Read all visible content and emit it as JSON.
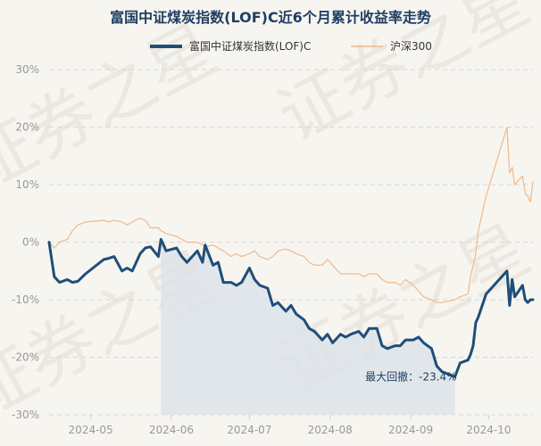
{
  "chart_data": {
    "type": "line",
    "title": "富国中证煤炭指数(LOF)C近6个月累计收益率走势",
    "xlabel": "",
    "ylabel": "",
    "x_tick_labels": [
      "2024-05",
      "2024-06",
      "2024-07",
      "2024-08",
      "2024-09",
      "2024-10"
    ],
    "y_tick_labels": [
      "30%",
      "20%",
      "10%",
      "0%",
      "-10%",
      "-20%",
      "-30%"
    ],
    "ylim": [
      -30,
      30
    ],
    "y_ticks": [
      30,
      20,
      10,
      0,
      -10,
      -20,
      -30
    ],
    "x_range": [
      "2024-04-15",
      "2024-10-18"
    ],
    "x_ticks": [
      "2024-05-01",
      "2024-06-01",
      "2024-07-01",
      "2024-08-01",
      "2024-09-01",
      "2024-10-01"
    ],
    "grid": true,
    "legend_position": "top",
    "watermark": "证券之星",
    "annotation": {
      "text": "最大回撤：-23.4%",
      "from_date": "2024-05-28",
      "to_date": "2024-09-18",
      "value": -23.4
    },
    "series": [
      {
        "name": "富国中证煤炭指数(LOF)C",
        "color": "#1f4e79",
        "points": [
          [
            "2024-04-15",
            0
          ],
          [
            "2024-04-17",
            -6
          ],
          [
            "2024-04-19",
            -7
          ],
          [
            "2024-04-22",
            -6.5
          ],
          [
            "2024-04-24",
            -7
          ],
          [
            "2024-04-26",
            -6.8
          ],
          [
            "2024-04-29",
            -5.5
          ],
          [
            "2024-05-06",
            -3
          ],
          [
            "2024-05-08",
            -2.8
          ],
          [
            "2024-05-10",
            -2.5
          ],
          [
            "2024-05-13",
            -5
          ],
          [
            "2024-05-15",
            -4.5
          ],
          [
            "2024-05-17",
            -5
          ],
          [
            "2024-05-20",
            -2
          ],
          [
            "2024-05-22",
            -1
          ],
          [
            "2024-05-24",
            -0.8
          ],
          [
            "2024-05-27",
            -2.5
          ],
          [
            "2024-05-28",
            0.5
          ],
          [
            "2024-05-30",
            -1.5
          ],
          [
            "2024-06-03",
            -1
          ],
          [
            "2024-06-05",
            -2.5
          ],
          [
            "2024-06-07",
            -3.5
          ],
          [
            "2024-06-11",
            -1.5
          ],
          [
            "2024-06-13",
            -3.5
          ],
          [
            "2024-06-14",
            -0.5
          ],
          [
            "2024-06-17",
            -4
          ],
          [
            "2024-06-19",
            -3.5
          ],
          [
            "2024-06-21",
            -7
          ],
          [
            "2024-06-24",
            -7
          ],
          [
            "2024-06-26",
            -7.5
          ],
          [
            "2024-06-28",
            -7
          ],
          [
            "2024-07-01",
            -4.5
          ],
          [
            "2024-07-03",
            -6.5
          ],
          [
            "2024-07-05",
            -7.5
          ],
          [
            "2024-07-08",
            -8
          ],
          [
            "2024-07-10",
            -11
          ],
          [
            "2024-07-12",
            -10.5
          ],
          [
            "2024-07-15",
            -12
          ],
          [
            "2024-07-17",
            -11
          ],
          [
            "2024-07-19",
            -12.5
          ],
          [
            "2024-07-22",
            -13.5
          ],
          [
            "2024-07-24",
            -15
          ],
          [
            "2024-07-26",
            -15.5
          ],
          [
            "2024-07-29",
            -17
          ],
          [
            "2024-07-31",
            -16
          ],
          [
            "2024-08-02",
            -17.5
          ],
          [
            "2024-08-05",
            -16
          ],
          [
            "2024-08-07",
            -16.5
          ],
          [
            "2024-08-09",
            -16
          ],
          [
            "2024-08-12",
            -15.5
          ],
          [
            "2024-08-14",
            -16.5
          ],
          [
            "2024-08-16",
            -15
          ],
          [
            "2024-08-19",
            -15
          ],
          [
            "2024-08-21",
            -18
          ],
          [
            "2024-08-23",
            -18.5
          ],
          [
            "2024-08-26",
            -18
          ],
          [
            "2024-08-28",
            -18
          ],
          [
            "2024-08-30",
            -17
          ],
          [
            "2024-09-02",
            -17
          ],
          [
            "2024-09-04",
            -16.5
          ],
          [
            "2024-09-06",
            -17.5
          ],
          [
            "2024-09-09",
            -18.5
          ],
          [
            "2024-09-11",
            -21.5
          ],
          [
            "2024-09-13",
            -22.5
          ],
          [
            "2024-09-18",
            -23.4
          ],
          [
            "2024-09-20",
            -21
          ],
          [
            "2024-09-23",
            -20.5
          ],
          [
            "2024-09-24",
            -19.5
          ],
          [
            "2024-09-25",
            -18
          ],
          [
            "2024-09-26",
            -14
          ],
          [
            "2024-09-27",
            -13
          ],
          [
            "2024-09-30",
            -9
          ],
          [
            "2024-10-08",
            -5
          ],
          [
            "2024-10-09",
            -11
          ],
          [
            "2024-10-10",
            -6.5
          ],
          [
            "2024-10-11",
            -9.5
          ],
          [
            "2024-10-14",
            -7.5
          ],
          [
            "2024-10-15",
            -10
          ],
          [
            "2024-10-16",
            -10.5
          ],
          [
            "2024-10-17",
            -10
          ],
          [
            "2024-10-18",
            -10
          ]
        ]
      },
      {
        "name": "沪深300",
        "color": "#f0b98a",
        "points": [
          [
            "2024-04-15",
            0
          ],
          [
            "2024-04-17",
            -1
          ],
          [
            "2024-04-19",
            0
          ],
          [
            "2024-04-22",
            0.5
          ],
          [
            "2024-04-24",
            2
          ],
          [
            "2024-04-26",
            3
          ],
          [
            "2024-04-29",
            3.5
          ],
          [
            "2024-05-06",
            3.8
          ],
          [
            "2024-05-08",
            3.5
          ],
          [
            "2024-05-10",
            3.8
          ],
          [
            "2024-05-13",
            3.5
          ],
          [
            "2024-05-15",
            3
          ],
          [
            "2024-05-17",
            3.5
          ],
          [
            "2024-05-20",
            4.2
          ],
          [
            "2024-05-22",
            3.8
          ],
          [
            "2024-05-24",
            2.5
          ],
          [
            "2024-05-27",
            2.5
          ],
          [
            "2024-05-28",
            2
          ],
          [
            "2024-05-30",
            1.5
          ],
          [
            "2024-06-03",
            1
          ],
          [
            "2024-06-05",
            0.5
          ],
          [
            "2024-06-07",
            0
          ],
          [
            "2024-06-11",
            0
          ],
          [
            "2024-06-13",
            -0.5
          ],
          [
            "2024-06-14",
            -0.8
          ],
          [
            "2024-06-17",
            -0.5
          ],
          [
            "2024-06-19",
            -1
          ],
          [
            "2024-06-21",
            -1.5
          ],
          [
            "2024-06-24",
            -2.5
          ],
          [
            "2024-06-26",
            -2
          ],
          [
            "2024-06-28",
            -2.5
          ],
          [
            "2024-07-01",
            -2
          ],
          [
            "2024-07-03",
            -1.5
          ],
          [
            "2024-07-05",
            -2.5
          ],
          [
            "2024-07-08",
            -3
          ],
          [
            "2024-07-10",
            -2.5
          ],
          [
            "2024-07-12",
            -1.5
          ],
          [
            "2024-07-15",
            -1.2
          ],
          [
            "2024-07-17",
            -1.5
          ],
          [
            "2024-07-19",
            -2
          ],
          [
            "2024-07-22",
            -2.5
          ],
          [
            "2024-07-24",
            -3.5
          ],
          [
            "2024-07-26",
            -4
          ],
          [
            "2024-07-29",
            -4
          ],
          [
            "2024-07-31",
            -3
          ],
          [
            "2024-08-02",
            -4
          ],
          [
            "2024-08-05",
            -5.5
          ],
          [
            "2024-08-07",
            -5.5
          ],
          [
            "2024-08-09",
            -5.5
          ],
          [
            "2024-08-12",
            -5.5
          ],
          [
            "2024-08-14",
            -6
          ],
          [
            "2024-08-16",
            -5.5
          ],
          [
            "2024-08-19",
            -5.5
          ],
          [
            "2024-08-21",
            -6.5
          ],
          [
            "2024-08-23",
            -7
          ],
          [
            "2024-08-26",
            -7
          ],
          [
            "2024-08-28",
            -7.5
          ],
          [
            "2024-08-30",
            -6.5
          ],
          [
            "2024-09-02",
            -7.5
          ],
          [
            "2024-09-04",
            -8.5
          ],
          [
            "2024-09-06",
            -9.5
          ],
          [
            "2024-09-09",
            -10
          ],
          [
            "2024-09-11",
            -10.5
          ],
          [
            "2024-09-13",
            -10.5
          ],
          [
            "2024-09-18",
            -10
          ],
          [
            "2024-09-20",
            -9.5
          ],
          [
            "2024-09-23",
            -9
          ],
          [
            "2024-09-24",
            -6
          ],
          [
            "2024-09-25",
            -4
          ],
          [
            "2024-09-26",
            -2
          ],
          [
            "2024-09-27",
            2
          ],
          [
            "2024-09-30",
            8
          ],
          [
            "2024-10-08",
            20
          ],
          [
            "2024-10-09",
            12
          ],
          [
            "2024-10-10",
            13
          ],
          [
            "2024-10-11",
            10
          ],
          [
            "2024-10-14",
            11.5
          ],
          [
            "2024-10-15",
            8.5
          ],
          [
            "2024-10-16",
            8
          ],
          [
            "2024-10-17",
            7
          ],
          [
            "2024-10-18",
            10.5
          ]
        ]
      }
    ]
  }
}
